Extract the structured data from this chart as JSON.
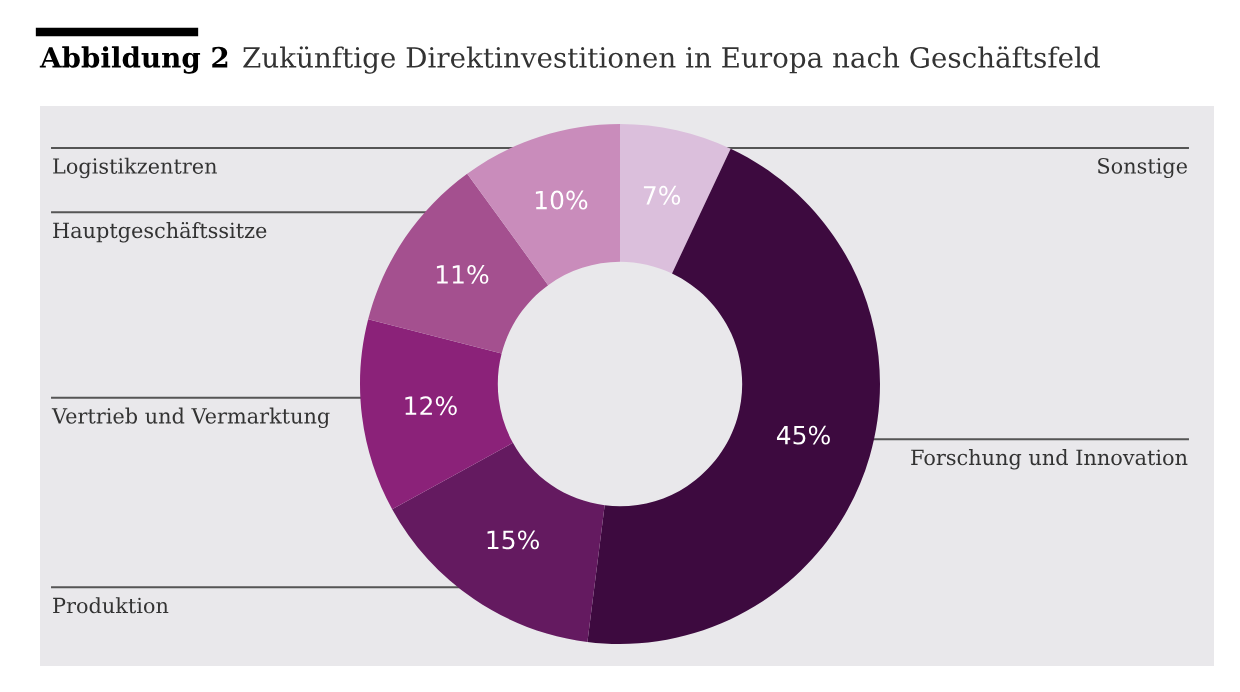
{
  "chart_data": {
    "type": "donut",
    "title": "Abbildung 2 Zukünftige Direktinvestitionen in Europa nach Geschäftsfeld",
    "categories": [
      "Sonstige",
      "Forschung und Innovation",
      "Produktion",
      "Vertrieb und Vermarktung",
      "Hauptgeschäftssitze",
      "Logistikzentren"
    ],
    "values": [
      7,
      45,
      15,
      12,
      11,
      10
    ],
    "value_labels": [
      "7%",
      "45%",
      "15%",
      "12%",
      "11%",
      "10%"
    ],
    "colors": [
      "#dbbfdc",
      "#3d0a3f",
      "#641a60",
      "#8b2279",
      "#a4508f",
      "#c98cbb"
    ],
    "legend": false
  }
}
